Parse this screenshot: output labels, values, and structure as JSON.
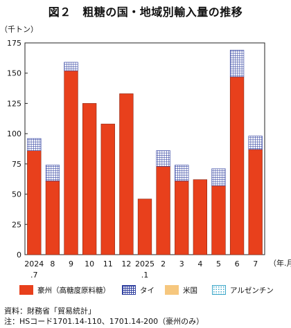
{
  "title": "図２　粗糖の国・地域別輸入量の推移",
  "unit_label": "（千トン）",
  "period_label": "（年.月）",
  "legend": [
    {
      "name": "豪州（高糖度原料糖）",
      "pattern": "solid",
      "color": "#e8401c"
    },
    {
      "name": "タイ",
      "pattern": "grid",
      "color": "#2f3f9f"
    },
    {
      "name": "米国",
      "pattern": "solid",
      "color": "#f6c77e"
    },
    {
      "name": "アルゼンチン",
      "pattern": "dots",
      "color": "#39a6c8"
    }
  ],
  "notes": {
    "source": "資料：財務省「貿易統計」",
    "note": "注：HSコード1701.14-110、1701.14-200（豪州のみ）"
  },
  "chart_data": {
    "type": "bar",
    "stacked": true,
    "y_unit": "千トン",
    "ylim": [
      0,
      175
    ],
    "yticks": [
      0,
      25,
      50,
      75,
      100,
      125,
      150,
      175
    ],
    "categories": [
      {
        "label": "2024",
        "sub": ".7"
      },
      {
        "label": "8",
        "sub": ""
      },
      {
        "label": "9",
        "sub": ""
      },
      {
        "label": "10",
        "sub": ""
      },
      {
        "label": "11",
        "sub": ""
      },
      {
        "label": "12",
        "sub": ""
      },
      {
        "label": "2025",
        "sub": ".1"
      },
      {
        "label": "2",
        "sub": ""
      },
      {
        "label": "3",
        "sub": ""
      },
      {
        "label": "4",
        "sub": ""
      },
      {
        "label": "5",
        "sub": ""
      },
      {
        "label": "6",
        "sub": ""
      },
      {
        "label": "7",
        "sub": ""
      }
    ],
    "series": [
      {
        "name": "豪州（高糖度原料糖）",
        "values": [
          86,
          61,
          152,
          125,
          108,
          133,
          46,
          73,
          61,
          62,
          57,
          147,
          87
        ]
      },
      {
        "name": "タイ",
        "values": [
          10,
          13,
          7,
          0,
          0,
          0,
          0,
          13,
          13,
          0,
          14,
          22,
          11
        ]
      },
      {
        "name": "米国",
        "values": [
          0,
          0,
          0,
          0,
          0,
          0,
          0,
          0,
          0,
          0,
          0,
          0,
          0
        ]
      },
      {
        "name": "アルゼンチン",
        "values": [
          0,
          0,
          0,
          0,
          0,
          0,
          0,
          0,
          0,
          0,
          0,
          0,
          0
        ]
      }
    ],
    "grid": false,
    "legend_position": "bottom"
  }
}
